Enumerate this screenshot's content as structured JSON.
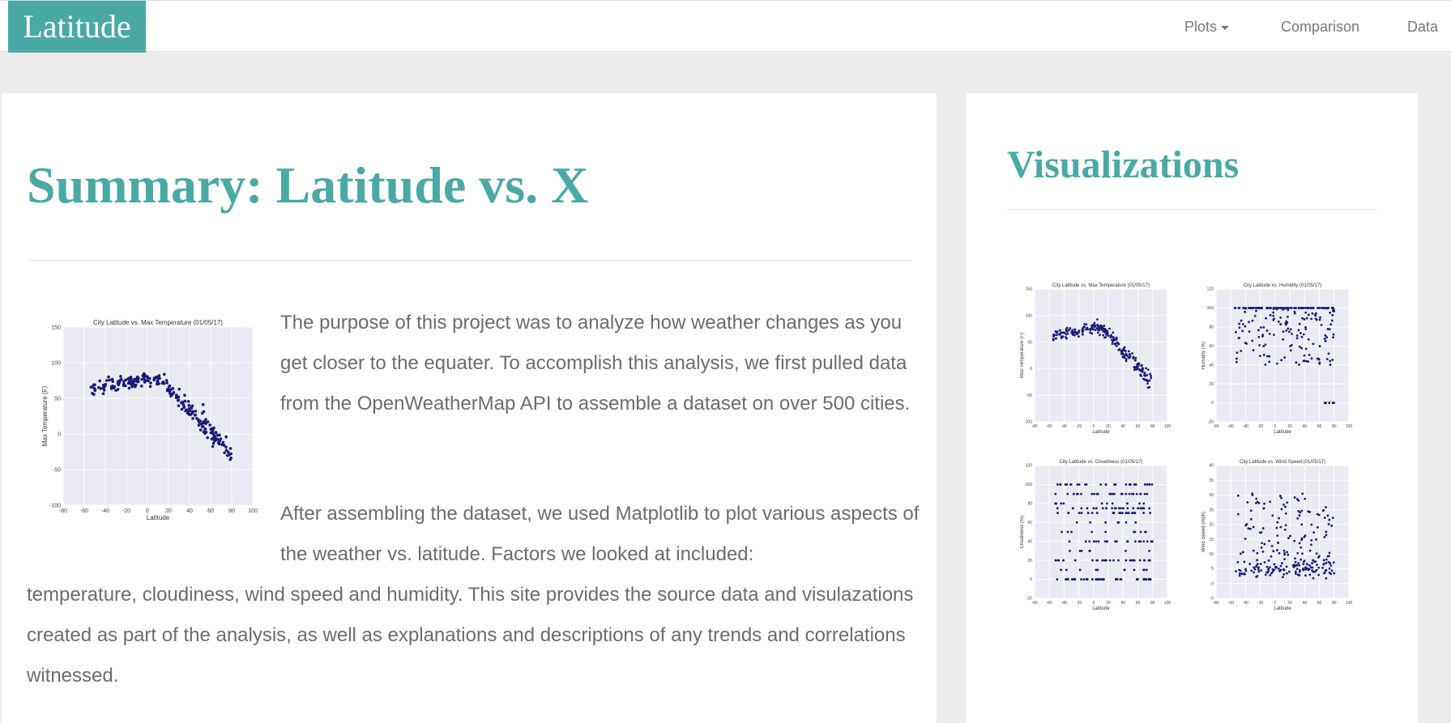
{
  "navbar": {
    "brand": "Latitude",
    "links": [
      {
        "label": "Plots"
      },
      {
        "label": "Comparison"
      },
      {
        "label": "Data"
      }
    ]
  },
  "main": {
    "title": "Summary: Latitude vs. X",
    "paragraph1": "The purpose of this project was to analyze how weather changes as you get closer to the equater. To accomplish this analysis, we first pulled data from the OpenWeatherMap API to assemble a dataset on over 500 cities.",
    "paragraph2_part1": "After assembling the dataset, we used Matplotlib to plot various aspects of the weather vs. latitude. Factors we looked at included:",
    "paragraph2_part2": "temperature, cloudiness, wind speed and humidity. This site provides the source data and visulazations created as part of the analysis, as well as explanations and descriptions of any trends and correlations witnessed."
  },
  "sidebar": {
    "title": "Visualizations"
  },
  "colors": {
    "accent": "#4aa9a5",
    "point": "#1a1a7a",
    "plot_bg": "#eaeaf2"
  },
  "chart_data": [
    {
      "type": "scatter",
      "title": "City Latitude vs. Max Temperature (01/05/17)",
      "xlabel": "Latitude",
      "ylabel": "Max Temperature (F)",
      "xlim": [
        -80,
        100
      ],
      "ylim": [
        -100,
        150
      ],
      "xticks": [
        -80,
        -60,
        -40,
        -20,
        0,
        20,
        40,
        60,
        80,
        100
      ],
      "yticks": [
        -100,
        -50,
        0,
        50,
        100,
        150
      ],
      "grid": true,
      "pattern": "temp",
      "points": 240
    },
    {
      "type": "scatter",
      "title": "City Latitude vs. Max Temperature (01/05/17)",
      "xlabel": "Latitude",
      "ylabel": "Max Temperature (F)",
      "xlim": [
        -80,
        100
      ],
      "ylim": [
        -100,
        150
      ],
      "xticks": [
        -80,
        -60,
        -40,
        -20,
        0,
        20,
        40,
        60,
        80,
        100
      ],
      "yticks": [
        -100,
        -50,
        0,
        50,
        100,
        150
      ],
      "grid": true,
      "pattern": "temp",
      "points": 240
    },
    {
      "type": "scatter",
      "title": "City Latitude vs. Humidity (01/05/17)",
      "xlabel": "Latitude",
      "ylabel": "Humidity (%)",
      "xlim": [
        -80,
        100
      ],
      "ylim": [
        -20,
        120
      ],
      "xticks": [
        -80,
        -60,
        -40,
        -20,
        0,
        20,
        40,
        60,
        80,
        100
      ],
      "yticks": [
        -20,
        0,
        20,
        40,
        60,
        80,
        100,
        120
      ],
      "grid": true,
      "pattern": "humidity",
      "points": 240
    },
    {
      "type": "scatter",
      "title": "City Latitude vs. Cloudiness (01/05/17)",
      "xlabel": "Latitude",
      "ylabel": "Cloudiness (%)",
      "xlim": [
        -80,
        100
      ],
      "ylim": [
        -20,
        120
      ],
      "xticks": [
        -80,
        -60,
        -40,
        -20,
        0,
        20,
        40,
        60,
        80,
        100
      ],
      "yticks": [
        -20,
        0,
        20,
        40,
        60,
        80,
        100,
        120
      ],
      "grid": true,
      "pattern": "cloudiness",
      "points": 240
    },
    {
      "type": "scatter",
      "title": "City Latitude vs. Wind Speed (01/05/17)",
      "xlabel": "Latitude",
      "ylabel": "Wind Speed (mph)",
      "xlim": [
        -80,
        100
      ],
      "ylim": [
        -5,
        40
      ],
      "xticks": [
        -80,
        -60,
        -40,
        -20,
        0,
        20,
        40,
        60,
        80,
        100
      ],
      "yticks": [
        -5,
        0,
        5,
        10,
        15,
        20,
        25,
        30,
        35,
        40
      ],
      "grid": true,
      "pattern": "wind",
      "points": 240
    }
  ]
}
